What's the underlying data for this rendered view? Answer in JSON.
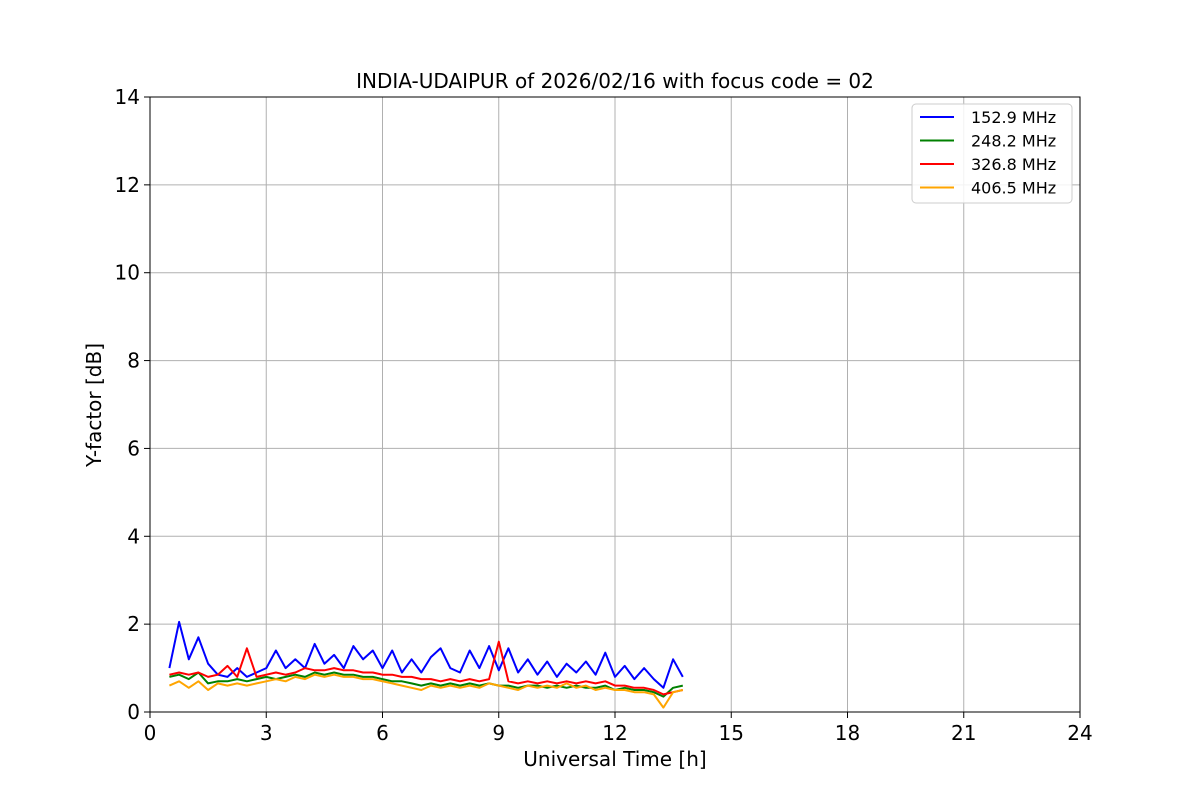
{
  "chart_data": {
    "type": "line",
    "title": "INDIA-UDAIPUR of 2026/02/16 with focus code = 02",
    "xlabel": "Universal Time [h]",
    "ylabel": "Y-factor [dB]",
    "xlim": [
      0,
      24
    ],
    "ylim": [
      0,
      14
    ],
    "xticks": [
      0,
      3,
      6,
      9,
      12,
      15,
      18,
      21,
      24
    ],
    "yticks": [
      0,
      2,
      4,
      6,
      8,
      10,
      12,
      14
    ],
    "grid": true,
    "legend_position": "top-right",
    "x": [
      0.5,
      0.75,
      1.0,
      1.25,
      1.5,
      1.75,
      2.0,
      2.25,
      2.5,
      2.75,
      3.0,
      3.25,
      3.5,
      3.75,
      4.0,
      4.25,
      4.5,
      4.75,
      5.0,
      5.25,
      5.5,
      5.75,
      6.0,
      6.25,
      6.5,
      6.75,
      7.0,
      7.25,
      7.5,
      7.75,
      8.0,
      8.25,
      8.5,
      8.75,
      9.0,
      9.25,
      9.5,
      9.75,
      10.0,
      10.25,
      10.5,
      10.75,
      11.0,
      11.25,
      11.5,
      11.75,
      12.0,
      12.25,
      12.5,
      12.75,
      13.0,
      13.25,
      13.5,
      13.75
    ],
    "series": [
      {
        "name": "152.9 MHz",
        "color": "#0000ff",
        "values": [
          1.0,
          2.05,
          1.2,
          1.7,
          1.1,
          0.85,
          0.8,
          1.0,
          0.8,
          0.9,
          1.0,
          1.4,
          1.0,
          1.2,
          1.0,
          1.55,
          1.1,
          1.3,
          1.0,
          1.5,
          1.2,
          1.4,
          1.0,
          1.4,
          0.9,
          1.2,
          0.9,
          1.25,
          1.45,
          1.0,
          0.9,
          1.4,
          1.0,
          1.5,
          0.95,
          1.45,
          0.9,
          1.2,
          0.85,
          1.15,
          0.8,
          1.1,
          0.9,
          1.15,
          0.85,
          1.35,
          0.8,
          1.05,
          0.75,
          1.0,
          0.75,
          0.55,
          1.2,
          0.8
        ]
      },
      {
        "name": "248.2 MHz",
        "color": "#008000",
        "values": [
          0.8,
          0.85,
          0.75,
          0.9,
          0.65,
          0.7,
          0.7,
          0.75,
          0.7,
          0.75,
          0.8,
          0.75,
          0.8,
          0.85,
          0.8,
          0.9,
          0.85,
          0.9,
          0.85,
          0.85,
          0.8,
          0.8,
          0.75,
          0.7,
          0.7,
          0.65,
          0.6,
          0.65,
          0.6,
          0.65,
          0.6,
          0.65,
          0.6,
          0.65,
          0.6,
          0.6,
          0.55,
          0.6,
          0.6,
          0.55,
          0.6,
          0.55,
          0.6,
          0.55,
          0.55,
          0.6,
          0.5,
          0.55,
          0.5,
          0.5,
          0.45,
          0.35,
          0.55,
          0.6
        ]
      },
      {
        "name": "326.8 MHz",
        "color": "#ff0000",
        "values": [
          0.85,
          0.9,
          0.85,
          0.9,
          0.8,
          0.85,
          1.05,
          0.8,
          1.45,
          0.8,
          0.85,
          0.9,
          0.85,
          0.9,
          1.0,
          0.95,
          0.95,
          1.0,
          0.95,
          0.95,
          0.9,
          0.9,
          0.85,
          0.85,
          0.8,
          0.8,
          0.75,
          0.75,
          0.7,
          0.75,
          0.7,
          0.75,
          0.7,
          0.75,
          1.6,
          0.7,
          0.65,
          0.7,
          0.65,
          0.7,
          0.65,
          0.7,
          0.65,
          0.7,
          0.65,
          0.7,
          0.6,
          0.6,
          0.55,
          0.55,
          0.5,
          0.4,
          0.45,
          0.5
        ]
      },
      {
        "name": "406.5 MHz",
        "color": "#ffa500",
        "values": [
          0.6,
          0.7,
          0.55,
          0.7,
          0.5,
          0.65,
          0.6,
          0.65,
          0.6,
          0.65,
          0.7,
          0.75,
          0.7,
          0.8,
          0.75,
          0.85,
          0.8,
          0.85,
          0.8,
          0.8,
          0.75,
          0.75,
          0.7,
          0.65,
          0.6,
          0.55,
          0.5,
          0.6,
          0.55,
          0.6,
          0.55,
          0.6,
          0.55,
          0.65,
          0.6,
          0.55,
          0.5,
          0.6,
          0.55,
          0.6,
          0.55,
          0.65,
          0.55,
          0.6,
          0.5,
          0.55,
          0.5,
          0.5,
          0.45,
          0.45,
          0.4,
          0.1,
          0.45,
          0.5
        ]
      }
    ]
  }
}
